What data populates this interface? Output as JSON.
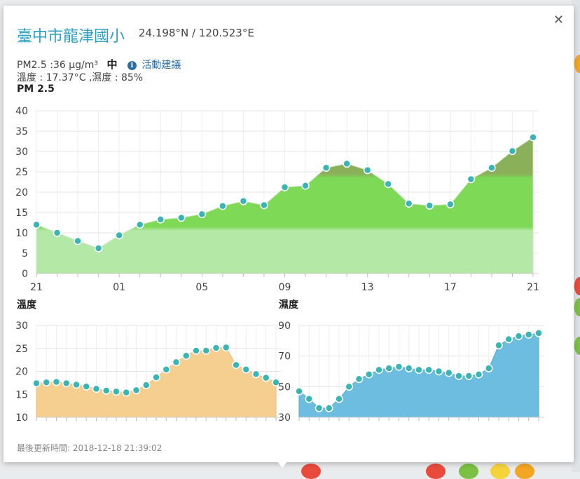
{
  "station": {
    "name": "臺中市龍津國小",
    "coords": "24.198°N / 120.523°E",
    "pm25_text": "PM2.5 :36 μg/m³",
    "level": "中",
    "advice_link": "活動建議",
    "temp_humidity_text": "溫度 : 17.37°C ,濕度 : 85%",
    "updated": "最後更新時間: 2018-12-18 21:39:02"
  },
  "icons": {
    "close": "close-icon",
    "info": "info-icon"
  },
  "colors": {
    "title": "#2ea1c3",
    "pm_fill": "#7ed957",
    "pm_low": "#b3e8a6",
    "pm_high": "#8ab05a",
    "temp_fill": "#f5c98a",
    "hum_fill": "#6bbde0",
    "point": "#3ab5b3"
  },
  "chart_data": [
    {
      "type": "area",
      "title": "PM 2.5",
      "ylim": [
        0,
        40
      ],
      "yticks": [
        0,
        5,
        10,
        15,
        20,
        25,
        30,
        35,
        40
      ],
      "xtick_labels": [
        "21",
        "01",
        "05",
        "09",
        "13",
        "17",
        "21"
      ],
      "values": [
        12,
        10,
        8,
        6.2,
        9.4,
        12,
        13.3,
        13.7,
        14.6,
        16.6,
        17.8,
        16.8,
        21.2,
        21.6,
        26,
        27,
        25.4,
        22,
        17.2,
        16.7,
        17,
        23.2,
        26,
        30.1,
        33.5
      ],
      "grid": true
    },
    {
      "type": "area",
      "title": "溫度",
      "ylim": [
        10,
        30
      ],
      "yticks": [
        10,
        15,
        20,
        25,
        30
      ],
      "values": [
        17.4,
        17.6,
        17.7,
        17.4,
        17.1,
        16.7,
        16.2,
        15.8,
        15.6,
        15.4,
        15.9,
        17,
        18.7,
        20.4,
        22,
        23.4,
        24.5,
        24.5,
        25.1,
        25.2,
        21.4,
        20.4,
        19.4,
        18.6,
        17.6
      ],
      "grid": true
    },
    {
      "type": "area",
      "title": "濕度",
      "ylim": [
        30,
        90
      ],
      "yticks": [
        30,
        50,
        70,
        90
      ],
      "values": [
        47,
        42,
        36,
        36,
        42,
        50,
        55,
        58,
        61,
        62,
        63,
        62,
        61,
        61,
        60,
        59,
        57,
        57,
        58,
        62,
        77,
        81,
        83,
        84,
        85
      ],
      "grid": true
    }
  ]
}
